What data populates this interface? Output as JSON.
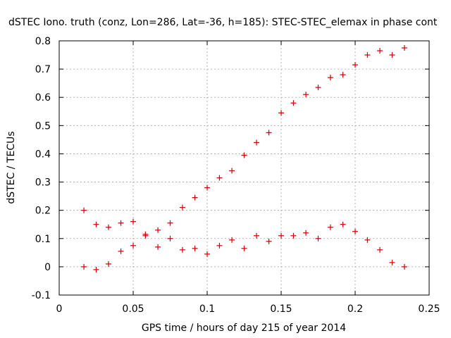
{
  "chart_data": {
    "type": "scatter",
    "title": "dSTEC Iono. truth (conz, Lon=286, Lat=-36, h=185): STEC-STEC_elemax in phase cont",
    "xlabel": "GPS time / hours of day 215 of year 2014",
    "ylabel": "dSTEC  / TECUs",
    "xlim": [
      0,
      0.25
    ],
    "ylim": [
      -0.1,
      0.8
    ],
    "xticks": [
      "0",
      "0.05",
      "0.1",
      "0.15",
      "0.2",
      "0.25"
    ],
    "yticks": [
      "-0.1",
      "0",
      "0.1",
      "0.2",
      "0.3",
      "0.4",
      "0.5",
      "0.6",
      "0.7",
      "0.8"
    ],
    "grid": true,
    "marker": "plus",
    "color": "#cc0000",
    "series": [
      {
        "x": [
          0.0167,
          0.025,
          0.0333,
          0.0417,
          0.05,
          0.0583,
          0.0667,
          0.075,
          0.0833,
          0.0917,
          0.1,
          0.1083,
          0.1167,
          0.125,
          0.1333,
          0.1417,
          0.15,
          0.1583,
          0.1667,
          0.175,
          0.1833,
          0.1917,
          0.2,
          0.2083,
          0.2167,
          0.225,
          0.2333
        ],
        "y": [
          0.2,
          0.15,
          0.14,
          0.155,
          0.16,
          0.115,
          0.13,
          0.155,
          0.21,
          0.245,
          0.28,
          0.315,
          0.34,
          0.395,
          0.44,
          0.475,
          0.545,
          0.58,
          0.61,
          0.635,
          0.67,
          0.68,
          0.715,
          0.75,
          0.765,
          0.75,
          0.775
        ]
      },
      {
        "x": [
          0.0167,
          0.025,
          0.0333,
          0.0417,
          0.05,
          0.0583,
          0.0667,
          0.075,
          0.0833,
          0.0917,
          0.1,
          0.1083,
          0.1167,
          0.125,
          0.1333,
          0.1417,
          0.15,
          0.1583,
          0.1667,
          0.175,
          0.1833,
          0.1917,
          0.2,
          0.2083,
          0.2167,
          0.225,
          0.2333
        ],
        "y": [
          0.0,
          -0.01,
          0.01,
          0.055,
          0.075,
          0.11,
          0.07,
          0.1,
          0.06,
          0.065,
          0.045,
          0.075,
          0.095,
          0.065,
          0.11,
          0.09,
          0.11,
          0.11,
          0.12,
          0.1,
          0.14,
          0.15,
          0.125,
          0.095,
          0.06,
          0.015,
          0.0
        ]
      }
    ]
  }
}
